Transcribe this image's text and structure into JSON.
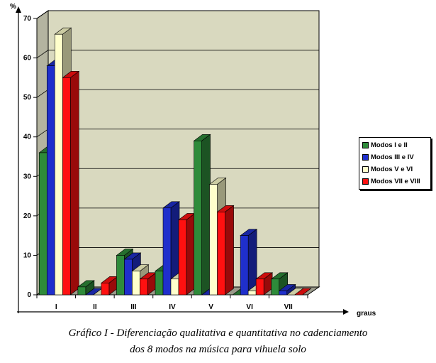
{
  "chart_data": {
    "type": "bar",
    "style": "3d-clustered",
    "categories": [
      "I",
      "II",
      "III",
      "IV",
      "V",
      "VI",
      "VII"
    ],
    "series": [
      {
        "name": "Modos I e II",
        "color": "#2e8b3a",
        "values": [
          36,
          2,
          10,
          6,
          39,
          0,
          4
        ]
      },
      {
        "name": "Modos III e IV",
        "color": "#1f2fcc",
        "values": [
          58,
          0,
          9,
          22,
          0,
          15,
          1
        ]
      },
      {
        "name": "Modos V e VI",
        "color": "#ffffcc",
        "values": [
          66,
          0,
          6,
          4,
          28,
          1,
          0
        ]
      },
      {
        "name": "Modos VII e VIII",
        "color": "#ff1010",
        "values": [
          55,
          3,
          4,
          19,
          21,
          4,
          0
        ]
      }
    ],
    "ylabel": "%",
    "xlabel": "graus",
    "ylim": [
      0,
      70
    ],
    "yticks": [
      0,
      10,
      20,
      30,
      40,
      50,
      60,
      70
    ],
    "grid": true,
    "legend_position": "right"
  },
  "caption": {
    "line1": "Gráfico I - Diferenciação qualitativa e quantitativa no cadenciamento",
    "line2": "dos 8 modos na música para vihuela solo"
  }
}
